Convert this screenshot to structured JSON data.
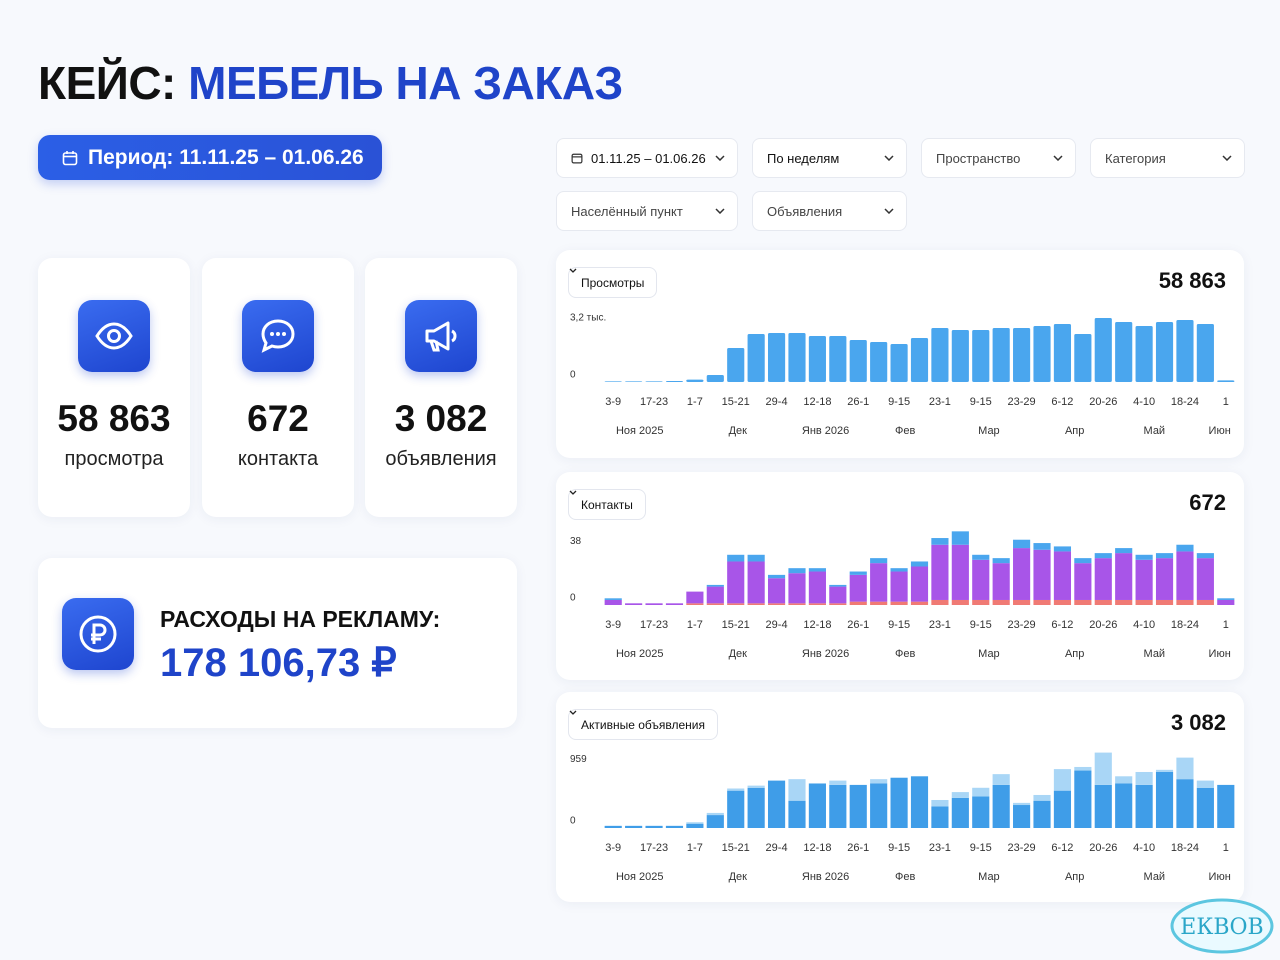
{
  "header": {
    "title_prefix": "КЕЙС:",
    "title_accent": "МЕБЕЛЬ НА ЗАКАЗ"
  },
  "period_button": "Период: 11.11.25 – 01.06.26",
  "filters": [
    "01.11.25 – 01.06.26",
    "По неделям",
    "Пространство",
    "Категория",
    "Населённый пункт",
    "Объявления"
  ],
  "stats": [
    {
      "value": "58 863",
      "label": "просмотра"
    },
    {
      "value": "672",
      "label": "контакта"
    },
    {
      "value": "3 082",
      "label": "объявления"
    }
  ],
  "spend": {
    "label": "РАСХОДЫ НА РЕКЛАМУ:",
    "value": "178 106,73 ₽"
  },
  "chart_data": [
    {
      "type": "bar",
      "title": "Просмотры",
      "total": "58 863",
      "color": "#4aa6ee",
      "categories": [
        "3-9",
        null,
        "17-23",
        null,
        "1-7",
        null,
        "15-21",
        null,
        "29-4",
        null,
        "12-18",
        null,
        "26-1",
        null,
        "9-15",
        null,
        "23-1",
        null,
        "9-15",
        null,
        "23-29",
        null,
        "6-12",
        null,
        "20-26",
        null,
        "4-10",
        null,
        "18-24",
        null,
        "1"
      ],
      "months": [
        "Ноя 2025",
        "Дек",
        "Янв 2026",
        "Фев",
        "Мар",
        "Апр",
        "Май",
        "Июн"
      ],
      "values": [
        30,
        30,
        30,
        50,
        120,
        350,
        1700,
        2400,
        2450,
        2450,
        2300,
        2300,
        2100,
        2000,
        1900,
        2200,
        2700,
        2600,
        2600,
        2700,
        2700,
        2800,
        2900,
        2400,
        3200,
        3000,
        2800,
        3000,
        3100,
        2900,
        80
      ],
      "ylim": [
        0,
        3500
      ],
      "yticks": [
        {
          "value": 3200,
          "label": "3,2 тыс."
        },
        0
      ],
      "grid": false
    },
    {
      "type": "stacked_bar",
      "title": "Контакты",
      "total": "672",
      "categories": [
        "3-9",
        null,
        "17-23",
        null,
        "1-7",
        null,
        "15-21",
        null,
        "29-4",
        null,
        "12-18",
        null,
        "26-1",
        null,
        "9-15",
        null,
        "23-1",
        null,
        "9-15",
        null,
        "23-29",
        null,
        "6-12",
        null,
        "20-26",
        null,
        "4-10",
        null,
        "18-24",
        null,
        "1"
      ],
      "months": [
        "Ноя 2025",
        "Дек",
        "Янв 2026",
        "Фев",
        "Мар",
        "Апр",
        "Май",
        "Июн"
      ],
      "series": [
        {
          "color": "#f07a74",
          "values": [
            0,
            0,
            0,
            0,
            1,
            1,
            1,
            1,
            1,
            1,
            1,
            1,
            2,
            2,
            2,
            2,
            3,
            3,
            3,
            3,
            3,
            3,
            3,
            3,
            3,
            3,
            3,
            3,
            3,
            3,
            0
          ]
        },
        {
          "color": "#a855e8",
          "values": [
            3,
            1,
            1,
            1,
            7,
            10,
            25,
            25,
            15,
            18,
            19,
            10,
            16,
            23,
            18,
            21,
            33,
            33,
            24,
            22,
            31,
            30,
            29,
            22,
            25,
            28,
            24,
            25,
            29,
            25,
            3
          ]
        },
        {
          "color": "#4aa6ee",
          "values": [
            1,
            0,
            0,
            0,
            0,
            1,
            4,
            4,
            2,
            3,
            2,
            1,
            2,
            3,
            2,
            3,
            4,
            8,
            3,
            3,
            5,
            4,
            3,
            3,
            3,
            3,
            3,
            3,
            4,
            3,
            1
          ]
        }
      ],
      "ylim": [
        0,
        46
      ],
      "yticks": [
        38,
        0
      ],
      "grid": false
    },
    {
      "type": "stacked_bar",
      "title": "Активные объявления",
      "total": "3 082",
      "categories": [
        "3-9",
        null,
        "17-23",
        null,
        "1-7",
        null,
        "15-21",
        null,
        "29-4",
        null,
        "12-18",
        null,
        "26-1",
        null,
        "9-15",
        null,
        "23-1",
        null,
        "9-15",
        null,
        "23-29",
        null,
        "6-12",
        null,
        "20-26",
        null,
        "4-10",
        null,
        "18-24",
        null,
        "1"
      ],
      "months": [
        "Ноя 2025",
        "Дек",
        "Янв 2026",
        "Фев",
        "Мар",
        "Апр",
        "Май",
        "Июн"
      ],
      "series": [
        {
          "color": "#3f9de8",
          "values": [
            30,
            30,
            30,
            30,
            60,
            180,
            520,
            560,
            660,
            380,
            620,
            600,
            600,
            620,
            700,
            720,
            300,
            420,
            440,
            600,
            320,
            380,
            520,
            800,
            600,
            620,
            600,
            780,
            680,
            560,
            600
          ]
        },
        {
          "color": "#a9d6f6",
          "values": [
            0,
            0,
            0,
            0,
            20,
            30,
            30,
            30,
            0,
            300,
            0,
            60,
            0,
            60,
            0,
            0,
            90,
            80,
            120,
            150,
            30,
            80,
            300,
            50,
            450,
            100,
            180,
            30,
            300,
            100,
            0
          ]
        }
      ],
      "ylim": [
        0,
        1100
      ],
      "yticks": [
        959,
        0
      ],
      "grid": false
    }
  ],
  "watermark": "ЕКВОВ"
}
